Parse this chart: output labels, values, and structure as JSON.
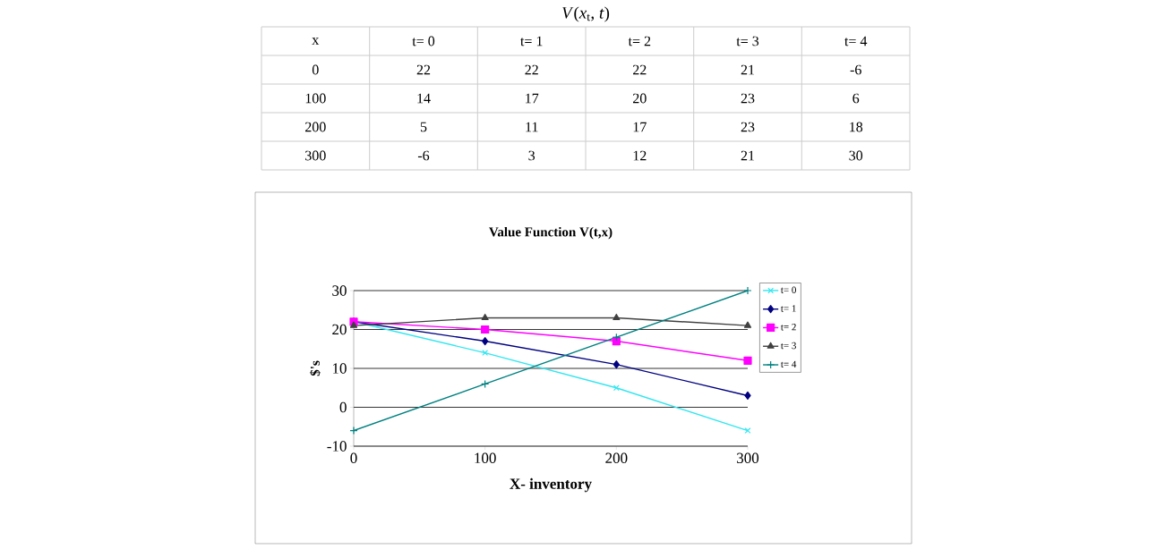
{
  "chart_data": [
    {
      "type": "heatmap",
      "title": "*V*(*x*$_{t}$, *t*)",
      "ylabel": "x",
      "categories": [
        "t= 0",
        "t= 1",
        "t= 2",
        "t= 3",
        "t= 4"
      ],
      "y_categories": [
        "0",
        "100",
        "200",
        "300"
      ],
      "cells": [
        [
          22,
          22,
          22,
          21,
          -6
        ],
        [
          14,
          17,
          20,
          23,
          6
        ],
        [
          5,
          11,
          17,
          23,
          18
        ],
        [
          -6,
          3,
          12,
          21,
          30
        ]
      ],
      "data_labels": true
    },
    {
      "type": "line",
      "title": "Value Function V(t,x)",
      "xlabel": "X- inventory",
      "ylabel": "$'s",
      "x": [
        0,
        100,
        200,
        300
      ],
      "series": [
        {
          "name": "t= 0",
          "color": "#33e6f0",
          "marker": "cross",
          "values": [
            22,
            14,
            5,
            -6
          ]
        },
        {
          "name": "t= 1",
          "color": "#000080",
          "marker": "diamond",
          "values": [
            22,
            17,
            11,
            3
          ]
        },
        {
          "name": "t= 2",
          "color": "#ff00ff",
          "marker": "square",
          "values": [
            22,
            20,
            17,
            12
          ]
        },
        {
          "name": "t= 3",
          "color": "#404040",
          "marker": "triangle",
          "values": [
            21,
            23,
            23,
            21
          ]
        },
        {
          "name": "t= 4",
          "color": "#008080",
          "marker": "plus",
          "values": [
            -6,
            6,
            18,
            30
          ]
        }
      ],
      "xlim": [
        0,
        300
      ],
      "xticks": [
        0,
        100,
        200,
        300
      ],
      "ylim": [
        -10,
        30
      ],
      "yticks": [
        -10,
        0,
        10,
        20,
        30
      ],
      "grid": "y",
      "legend": "right"
    }
  ]
}
